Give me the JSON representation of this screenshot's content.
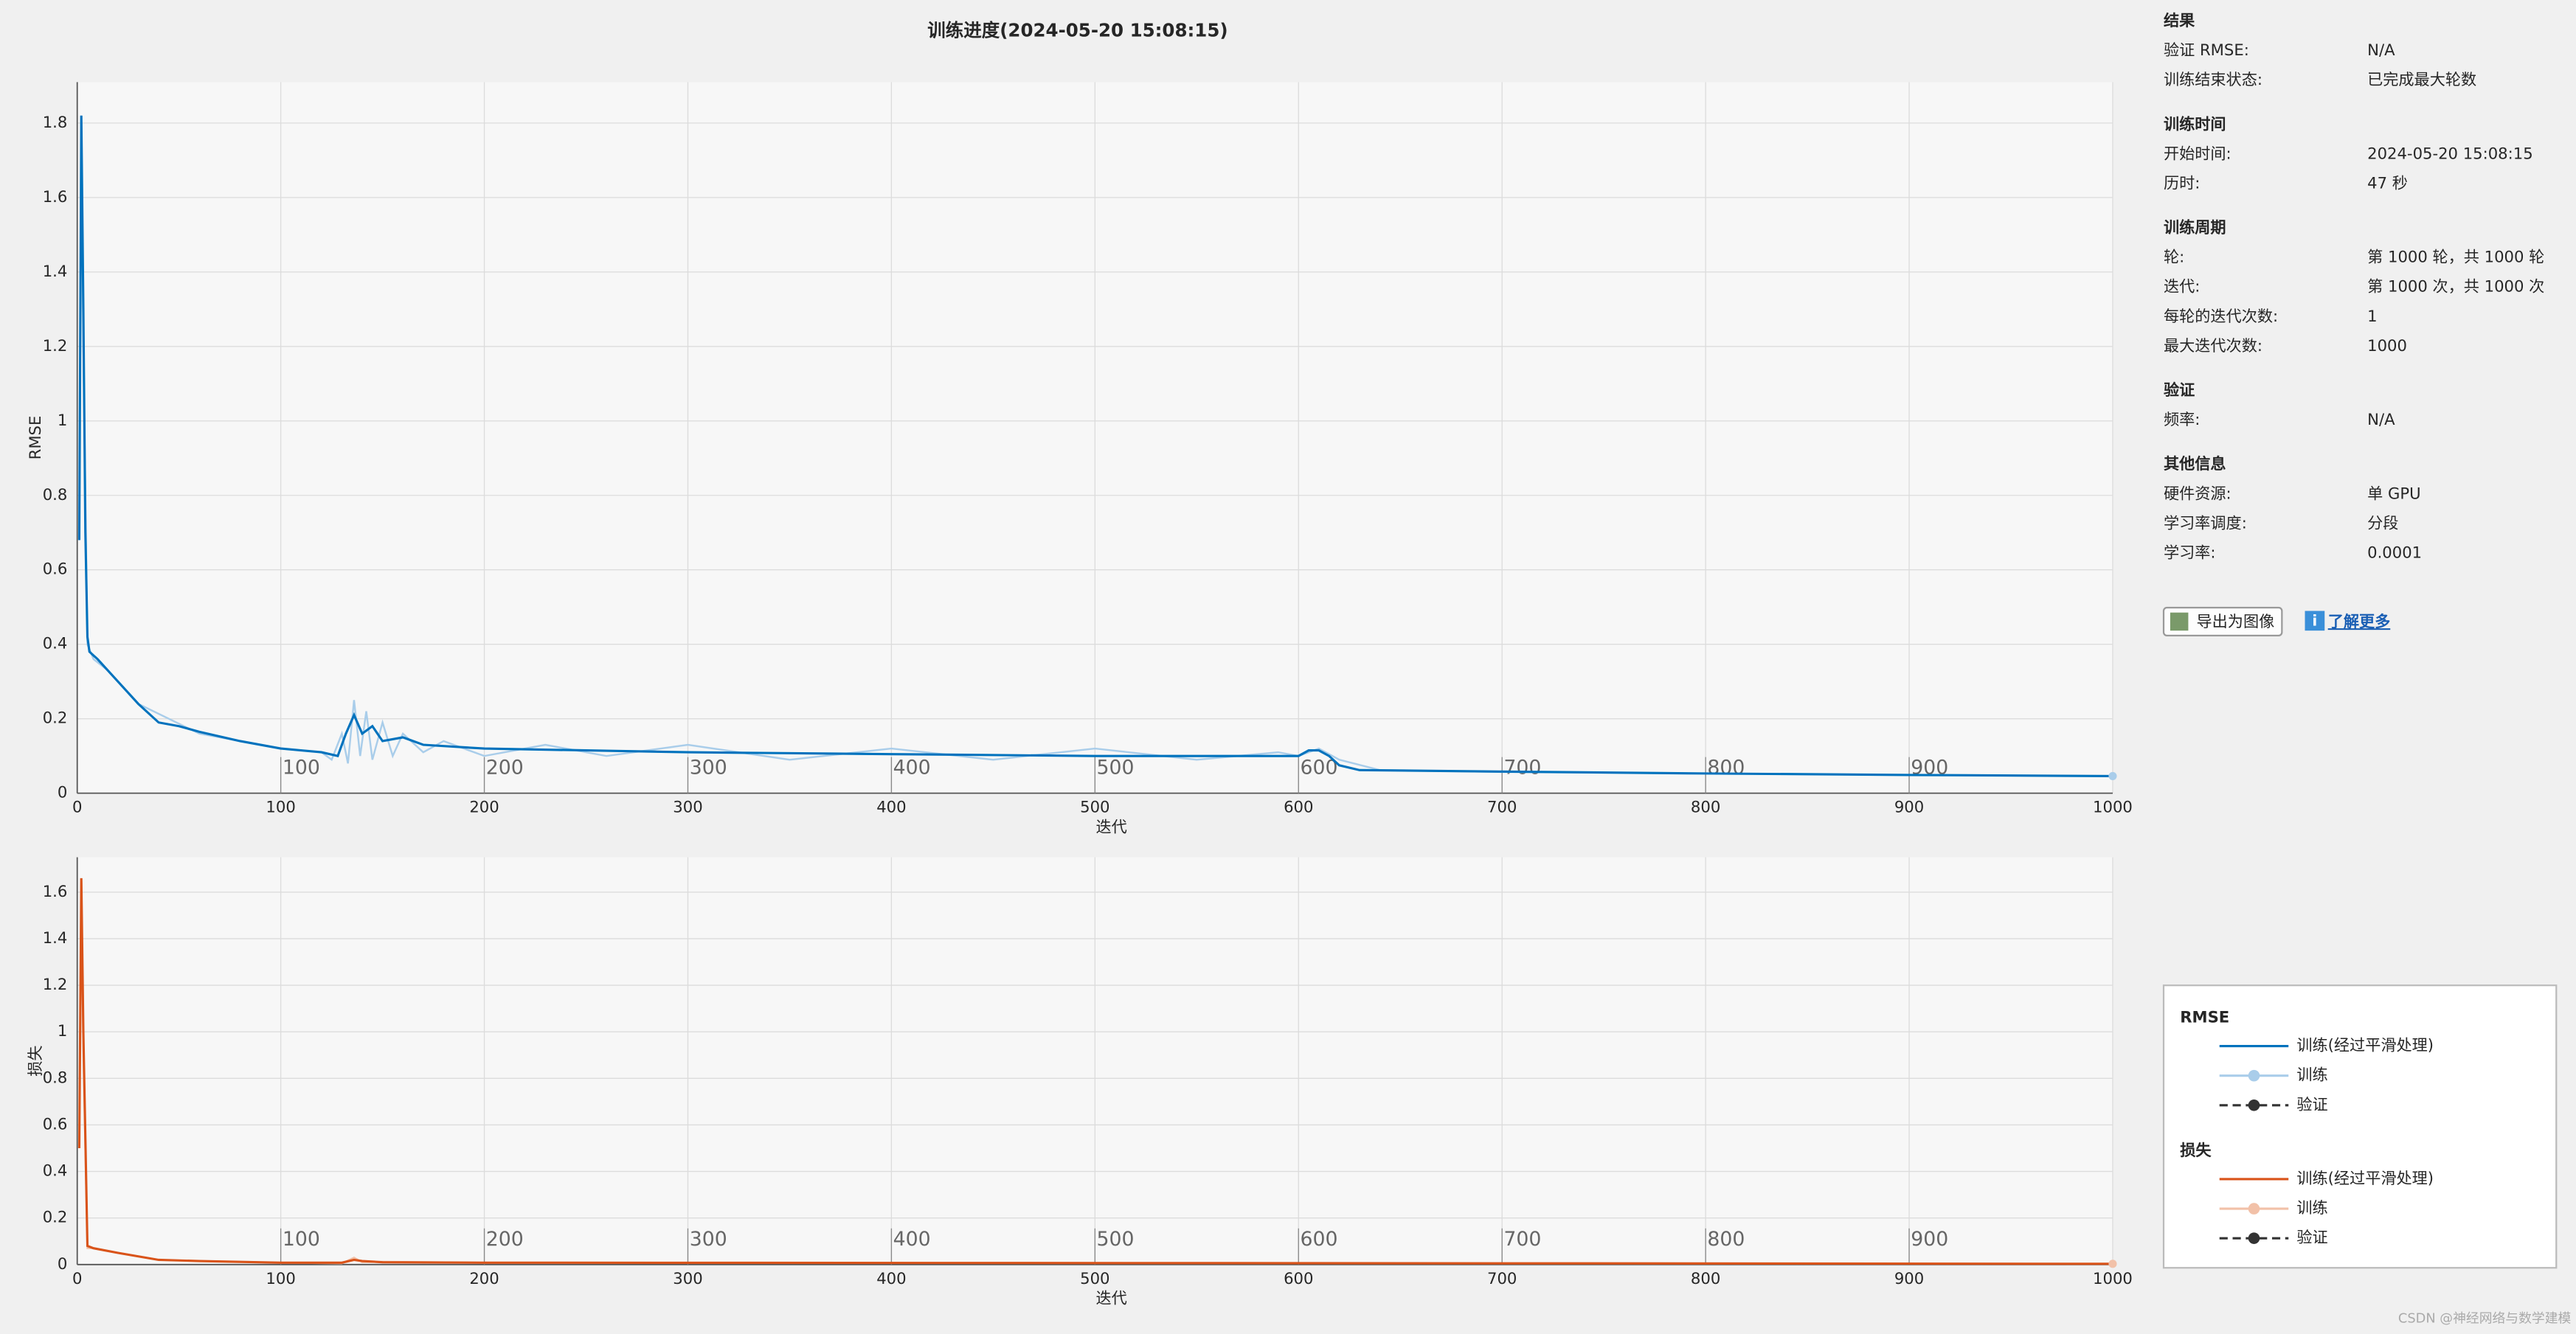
{
  "chart_data": [
    {
      "type": "line",
      "title": "训练进度(2024-05-20 15:08:15)",
      "y_label": "RMSE",
      "x_label": "迭代",
      "xlim": [
        0,
        1000
      ],
      "xticks": [
        0,
        100,
        200,
        300,
        400,
        500,
        600,
        700,
        800,
        900,
        1000
      ],
      "ylim": [
        0,
        1.91
      ],
      "yticks": [
        0,
        0.2,
        0.4,
        0.6,
        0.8,
        1,
        1.2,
        1.4,
        1.6,
        1.8
      ],
      "grid": true,
      "epoch_markers": [
        100,
        200,
        300,
        400,
        500,
        600,
        700,
        800,
        900
      ],
      "series": [
        {
          "name": "训练",
          "color": "#a9cdea",
          "x": [
            1,
            2,
            3,
            5,
            8,
            15,
            30,
            60,
            100,
            120,
            125,
            130,
            133,
            136,
            139,
            142,
            145,
            150,
            155,
            160,
            170,
            180,
            200,
            230,
            260,
            300,
            350,
            400,
            450,
            500,
            550,
            590,
            600,
            610,
            620,
            640,
            700,
            800,
            900,
            1000
          ],
          "values": [
            0.68,
            1.82,
            1.2,
            0.4,
            0.36,
            0.33,
            0.24,
            0.16,
            0.12,
            0.11,
            0.09,
            0.16,
            0.08,
            0.25,
            0.1,
            0.22,
            0.09,
            0.19,
            0.1,
            0.16,
            0.11,
            0.14,
            0.1,
            0.13,
            0.1,
            0.13,
            0.09,
            0.12,
            0.09,
            0.12,
            0.09,
            0.11,
            0.1,
            0.12,
            0.09,
            0.062,
            0.057,
            0.053,
            0.049,
            0.046
          ]
        },
        {
          "name": "训练(经过平滑处理)",
          "color": "#0072bd",
          "x": [
            1,
            2,
            3,
            4,
            5,
            6,
            8,
            10,
            15,
            20,
            25,
            30,
            40,
            50,
            60,
            80,
            100,
            120,
            128,
            132,
            136,
            140,
            145,
            150,
            160,
            170,
            200,
            300,
            400,
            500,
            600,
            605,
            610,
            615,
            620,
            630,
            700,
            800,
            900,
            1000
          ],
          "values": [
            0.68,
            1.82,
            1.3,
            0.7,
            0.42,
            0.38,
            0.37,
            0.36,
            0.33,
            0.3,
            0.27,
            0.24,
            0.19,
            0.18,
            0.165,
            0.14,
            0.12,
            0.11,
            0.1,
            0.16,
            0.21,
            0.16,
            0.18,
            0.14,
            0.15,
            0.13,
            0.12,
            0.11,
            0.105,
            0.1,
            0.1,
            0.115,
            0.115,
            0.1,
            0.075,
            0.062,
            0.058,
            0.053,
            0.049,
            0.046
          ]
        }
      ]
    },
    {
      "type": "line",
      "y_label": "损失",
      "x_label": "迭代",
      "xlim": [
        0,
        1000
      ],
      "xticks": [
        0,
        100,
        200,
        300,
        400,
        500,
        600,
        700,
        800,
        900,
        1000
      ],
      "ylim": [
        0,
        1.75
      ],
      "yticks": [
        0,
        0.2,
        0.4,
        0.6,
        0.8,
        1,
        1.2,
        1.4,
        1.6
      ],
      "grid": true,
      "epoch_markers": [
        100,
        200,
        300,
        400,
        500,
        600,
        700,
        800,
        900
      ],
      "series": [
        {
          "name": "训练",
          "color": "#f2c1a8",
          "x": [
            1,
            2,
            3,
            5,
            8,
            20,
            40,
            60,
            100,
            130,
            136,
            140,
            150,
            200,
            600,
            1000
          ],
          "values": [
            0.5,
            1.66,
            0.9,
            0.07,
            0.07,
            0.05,
            0.02,
            0.015,
            0.008,
            0.005,
            0.03,
            0.01,
            0.012,
            0.008,
            0.006,
            0.003
          ]
        },
        {
          "name": "训练(经过平滑处理)",
          "color": "#d95319",
          "x": [
            1,
            2,
            3,
            5,
            8,
            20,
            40,
            60,
            100,
            130,
            136,
            140,
            150,
            200,
            600,
            1000
          ],
          "values": [
            0.5,
            1.66,
            1.0,
            0.08,
            0.07,
            0.05,
            0.02,
            0.015,
            0.008,
            0.008,
            0.02,
            0.015,
            0.01,
            0.008,
            0.006,
            0.003
          ]
        }
      ]
    }
  ],
  "panel": {
    "sections": [
      {
        "title": "结果",
        "rows": [
          [
            "验证 RMSE:",
            "N/A"
          ],
          [
            "训练结束状态:",
            "已完成最大轮数"
          ]
        ]
      },
      {
        "title": "训练时间",
        "rows": [
          [
            "开始时间:",
            "2024-05-20 15:08:15"
          ],
          [
            "历时:",
            "47 秒"
          ]
        ]
      },
      {
        "title": "训练周期",
        "rows": [
          [
            "轮:",
            "第 1000 轮，共 1000 轮"
          ],
          [
            "迭代:",
            "第 1000 次，共 1000 次"
          ],
          [
            "每轮的迭代次数:",
            "1"
          ],
          [
            "最大迭代次数:",
            "1000"
          ]
        ]
      },
      {
        "title": "验证",
        "rows": [
          [
            "频率:",
            "N/A"
          ]
        ]
      },
      {
        "title": "其他信息",
        "rows": [
          [
            "硬件资源:",
            "单 GPU"
          ],
          [
            "学习率调度:",
            "分段"
          ],
          [
            "学习率:",
            "0.0001"
          ]
        ]
      }
    ]
  },
  "buttons": {
    "export": "导出为图像",
    "learn_more": "了解更多"
  },
  "legend": {
    "validation": "验证"
  },
  "watermark": "CSDN @神经网络与数学建模"
}
